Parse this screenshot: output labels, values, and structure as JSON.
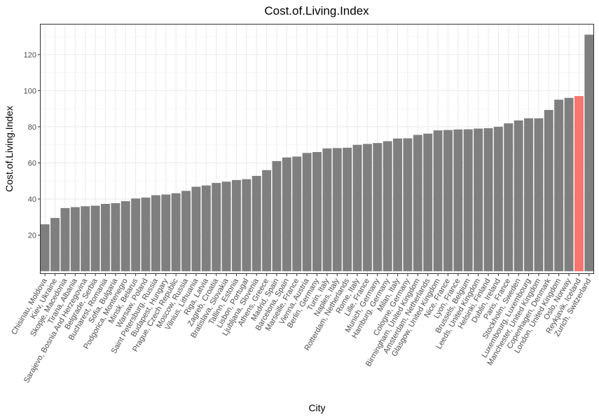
{
  "chart_data": {
    "type": "bar",
    "title": "Cost.of.Living.Index",
    "xlabel": "City",
    "ylabel": "Cost.of.Living.Index",
    "ylim": [
      -1.5,
      137
    ],
    "yticks": [
      20,
      40,
      60,
      80,
      100,
      120
    ],
    "grid": true,
    "bar_color": "#7f7f7f",
    "highlight_color": "#f8766d",
    "highlight_category": "Reykjavik, Iceland",
    "categories": [
      "Chisinau, Moldova",
      "Kiev, Ukraine",
      "Skopje, Macedonia",
      "Tirana, Albania",
      "Sarajevo, Bosnia And Herzegovina",
      "Belgrade, Serbia",
      "Bucharest, Romania",
      "Sofia, Bulgaria",
      "Podgorica, Montenegro",
      "Minsk, Belarus",
      "Warsaw, Poland",
      "Saint Petersburg, Russia",
      "Budapest, Hungary",
      "Prague, Czech Republic",
      "Moscow, Russia",
      "Vilnius, Lithuania",
      "Riga, Latvia",
      "Zagreb, Croatia",
      "Bratislava, Slovakia",
      "Tallinn, Estonia",
      "Lisbon, Portugal",
      "Ljubljana, Slovenia",
      "Athens, Greece",
      "Madrid, Spain",
      "Barcelona, Spain",
      "Marseille, France",
      "Vienna, Austria",
      "Berlin, Germany",
      "Turin, Italy",
      "Naples, Italy",
      "Rotterdam, Netherlands",
      "Rome, Italy",
      "Lille, France",
      "Munich, Germany",
      "Hamburg, Germany",
      "Milan, Italy",
      "Cologne, Germany",
      "Birmingham, United Kingdom",
      "Amsterdam, Netherlands",
      "Glasgow, United Kingdom",
      "Nice, France",
      "Lyon, France",
      "Brussels, Belgium",
      "Leeds, United Kingdom",
      "Helsinki, Finland",
      "Dublin, Ireland",
      "Paris, France",
      "Stockholm, Sweden",
      "Luxembourg, Luxembourg",
      "Manchester, United Kingdom",
      "Copenhagen, Denmark",
      "London, United Kingdom",
      "Oslo, Norway",
      "Reykjavik, Iceland",
      "Zurich, Switzerland"
    ],
    "values": [
      26,
      29.5,
      35,
      35.5,
      36,
      36.3,
      37.3,
      37.7,
      38.8,
      40.3,
      40.8,
      42.1,
      42.5,
      43.2,
      44.5,
      46.8,
      47.5,
      48.9,
      49.6,
      50.5,
      51,
      52.8,
      56,
      61,
      63,
      63.5,
      65.5,
      66,
      68,
      68.2,
      68.4,
      70,
      70.5,
      71,
      72,
      73.5,
      73.6,
      75.5,
      76.2,
      78,
      78.2,
      78.5,
      78.6,
      79,
      79.2,
      80,
      81.9,
      83.5,
      84.7,
      84.7,
      89.3,
      95,
      96,
      97,
      131
    ]
  }
}
